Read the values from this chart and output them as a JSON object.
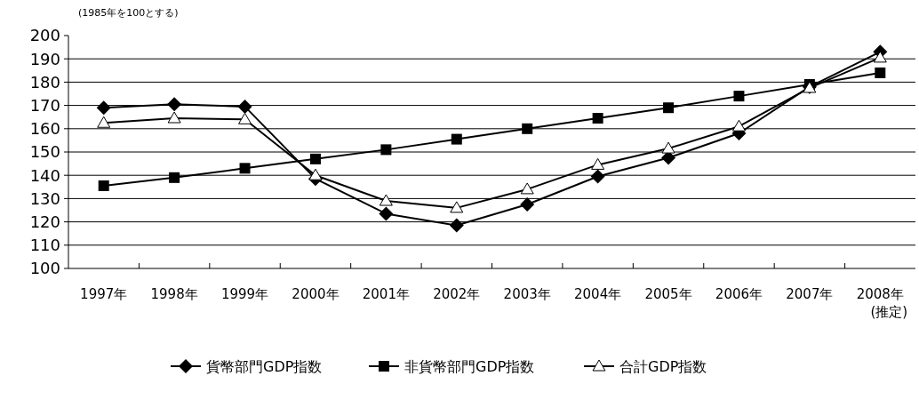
{
  "chart_data": {
    "type": "line",
    "annotations": [
      "(1985年を100とする)"
    ],
    "categories": [
      "1997年",
      "1998年",
      "1999年",
      "2000年",
      "2001年",
      "2002年",
      "2003年",
      "2004年",
      "2005年",
      "2006年",
      "2007年",
      "2008年\n(推定)"
    ],
    "series": [
      {
        "name": "貨幣部門GDP指数",
        "color": "#000000",
        "marker": "diamond",
        "values": [
          169,
          170.5,
          169.5,
          138.5,
          123.5,
          118.5,
          127.5,
          139.5,
          147.5,
          158,
          178,
          193
        ]
      },
      {
        "name": "非貨幣部門GDP指数",
        "color": "#000000",
        "marker": "square",
        "values": [
          135.5,
          139,
          143,
          147,
          151,
          155.5,
          160,
          164.5,
          169,
          174,
          179,
          184
        ]
      },
      {
        "name": "合計GDP指数",
        "color": "#000000",
        "marker": "triangle",
        "values": [
          162.5,
          164.5,
          164,
          140,
          129,
          126,
          134,
          144.5,
          151.5,
          161,
          177.5,
          190.5
        ]
      }
    ],
    "ylim": [
      100,
      200
    ],
    "yticks": [
      100,
      110,
      120,
      130,
      140,
      150,
      160,
      170,
      180,
      190,
      200
    ],
    "grid": "y",
    "legend": "bottom",
    "line_style": "solid"
  }
}
